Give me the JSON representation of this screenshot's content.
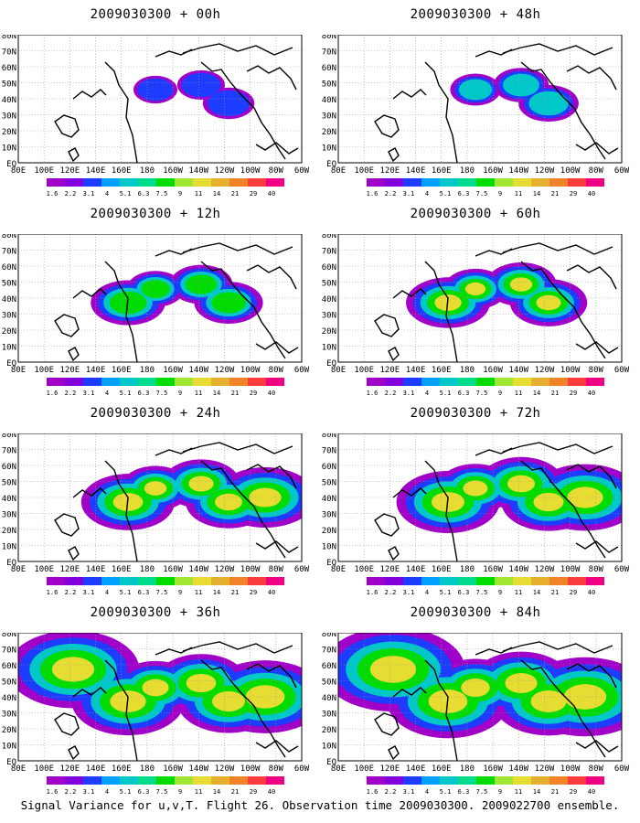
{
  "panels": [
    {
      "title": "2009030300 + 00h"
    },
    {
      "title": "2009030300 + 48h"
    },
    {
      "title": "2009030300 + 12h"
    },
    {
      "title": "2009030300 + 60h"
    },
    {
      "title": "2009030300 + 24h"
    },
    {
      "title": "2009030300 + 72h"
    },
    {
      "title": "2009030300 + 36h"
    },
    {
      "title": "2009030300 + 84h"
    }
  ],
  "lat_labels": [
    "80N",
    "70N",
    "60N",
    "50N",
    "40N",
    "30N",
    "20N",
    "10N",
    "EQ"
  ],
  "lon_labels": [
    "80E",
    "100E",
    "120E",
    "140E",
    "160E",
    "180",
    "160W",
    "140W",
    "120W",
    "100W",
    "80W",
    "60W"
  ],
  "colorbar": {
    "labels": [
      "1.6",
      "2.2",
      "3.1",
      "4",
      "5.1",
      "6.3",
      "7.5",
      "9",
      "11",
      "14",
      "21",
      "29",
      "40"
    ],
    "colors": [
      "#a000c8",
      "#8200dc",
      "#1e3cff",
      "#00a0ff",
      "#00c8c8",
      "#00dc8c",
      "#00dc00",
      "#a0e632",
      "#e6dc32",
      "#e6af2d",
      "#f08228",
      "#fa3c3c",
      "#f00082"
    ]
  },
  "caption": "Signal Variance for u,v,T. Flight 26. Observation time 2009030300. 2009022700 ensemble."
}
